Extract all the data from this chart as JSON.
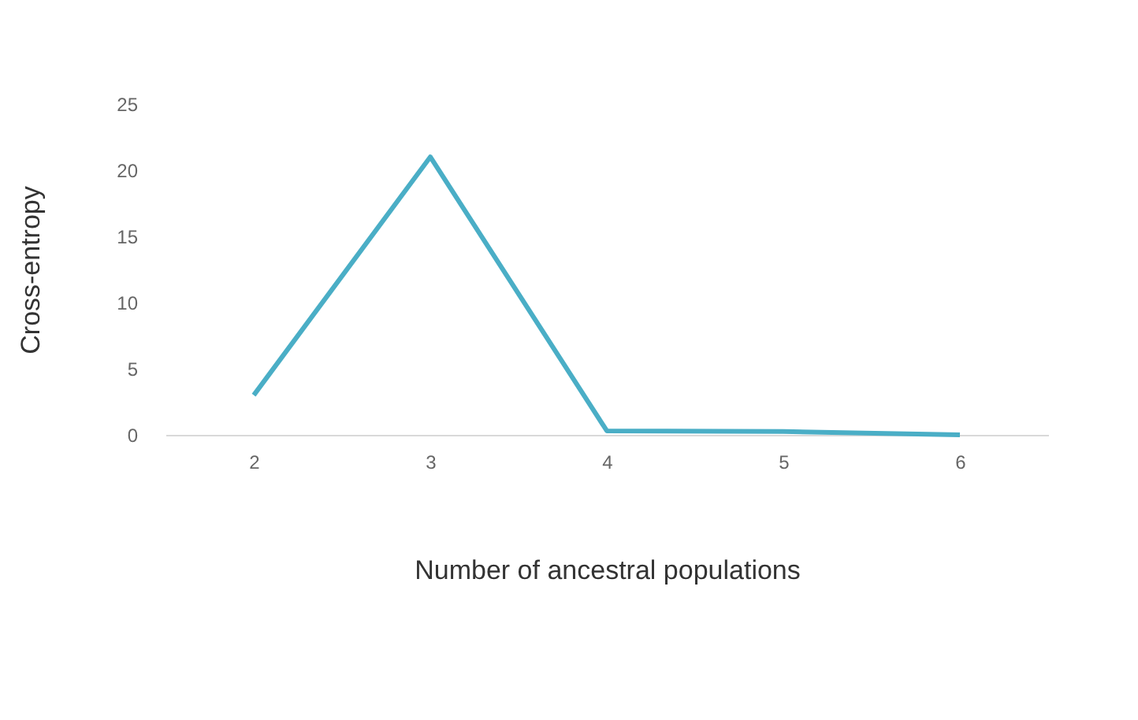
{
  "chart_data": {
    "type": "line",
    "xlabel": "Number of ancestral populations",
    "ylabel": "Cross-entropy",
    "categories": [
      "2",
      "3",
      "4",
      "5",
      "6"
    ],
    "series": [
      {
        "color": "#4aaec6",
        "values": [
          3,
          21,
          0.3,
          0.25,
          0
        ]
      }
    ],
    "ylim": [
      0,
      25
    ],
    "yticks": [
      0,
      5,
      10,
      15,
      20,
      25
    ],
    "grid": false,
    "marker": "none",
    "line_style": "solid"
  }
}
